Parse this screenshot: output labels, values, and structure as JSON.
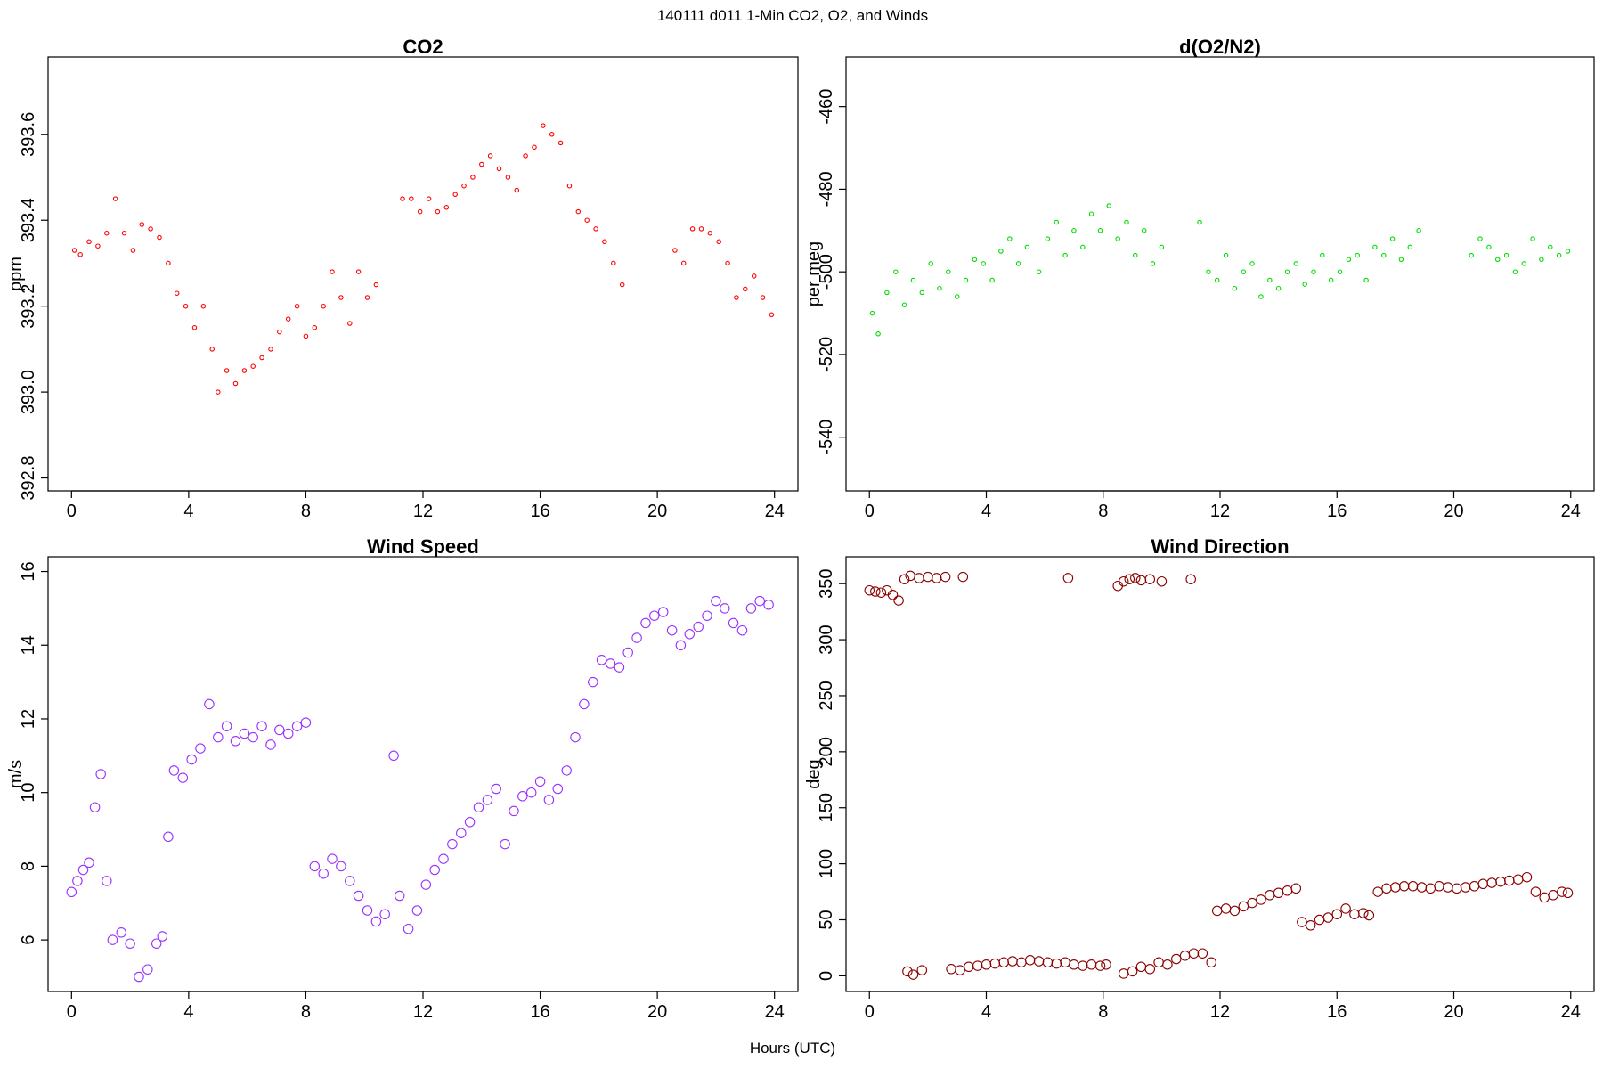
{
  "figure": {
    "title": "140111   d011   1-Min CO2, O2, and Winds",
    "xlabel": "Hours (UTC)"
  },
  "chart_data": [
    {
      "type": "scatter",
      "title": "CO2",
      "xlabel": "",
      "ylabel": "ppm",
      "xlim": [
        -0.8,
        24.8
      ],
      "ylim": [
        392.77,
        393.78
      ],
      "xticks": [
        0,
        4,
        8,
        12,
        16,
        20,
        24
      ],
      "yticks": [
        392.8,
        393.0,
        393.2,
        393.4,
        393.6
      ],
      "ytick_labels": [
        "392.8",
        "393.0",
        "393.2",
        "393.4",
        "393.6"
      ],
      "grid": false,
      "legend": "none",
      "color": "#ff0000",
      "marker_size": "small",
      "series": [
        {
          "x": [
            0.1,
            0.3,
            0.6,
            0.9,
            1.2,
            1.5,
            1.8,
            2.1,
            2.4,
            2.7,
            3.0,
            3.3,
            3.6,
            3.9,
            4.2,
            4.5,
            4.8,
            5.0,
            5.3,
            5.6,
            5.9,
            6.2,
            6.5,
            6.8,
            7.1,
            7.4,
            7.7,
            8.0,
            8.3,
            8.6,
            8.9,
            9.2,
            9.5,
            9.8,
            10.1,
            10.4,
            11.3,
            11.6,
            11.9,
            12.2,
            12.5,
            12.8,
            13.1,
            13.4,
            13.7,
            14.0,
            14.3,
            14.6,
            14.9,
            15.2,
            15.5,
            15.8,
            16.1,
            16.4,
            16.7,
            17.0,
            17.3,
            17.6,
            17.9,
            18.2,
            18.5,
            18.8,
            20.6,
            20.9,
            21.2,
            21.5,
            21.8,
            22.1,
            22.4,
            22.7,
            23.0,
            23.3,
            23.6,
            23.9
          ],
          "y": [
            393.33,
            393.32,
            393.35,
            393.34,
            393.37,
            393.45,
            393.37,
            393.33,
            393.39,
            393.38,
            393.36,
            393.3,
            393.23,
            393.2,
            393.15,
            393.2,
            393.1,
            393.0,
            393.05,
            393.02,
            393.05,
            393.06,
            393.08,
            393.1,
            393.14,
            393.17,
            393.2,
            393.13,
            393.15,
            393.2,
            393.28,
            393.22,
            393.16,
            393.28,
            393.22,
            393.25,
            393.45,
            393.45,
            393.42,
            393.45,
            393.42,
            393.43,
            393.46,
            393.48,
            393.5,
            393.53,
            393.55,
            393.52,
            393.5,
            393.47,
            393.55,
            393.57,
            393.62,
            393.6,
            393.58,
            393.48,
            393.42,
            393.4,
            393.38,
            393.35,
            393.3,
            393.25,
            393.33,
            393.3,
            393.38,
            393.38,
            393.37,
            393.35,
            393.3,
            393.22,
            393.24,
            393.27,
            393.22,
            393.18
          ]
        }
      ]
    },
    {
      "type": "scatter",
      "title": "d(O2/N2)",
      "xlabel": "",
      "ylabel": "per meg",
      "xlim": [
        -0.8,
        24.8
      ],
      "ylim": [
        -553,
        -448
      ],
      "xticks": [
        0,
        4,
        8,
        12,
        16,
        20,
        24
      ],
      "yticks": [
        -540,
        -520,
        -500,
        -480,
        -460
      ],
      "ytick_labels": [
        "-540",
        "-520",
        "-500",
        "-480",
        "-460"
      ],
      "grid": false,
      "legend": "none",
      "color": "#00dd00",
      "marker_size": "small",
      "series": [
        {
          "x": [
            0.1,
            0.3,
            0.6,
            0.9,
            1.2,
            1.5,
            1.8,
            2.1,
            2.4,
            2.7,
            3.0,
            3.3,
            3.6,
            3.9,
            4.2,
            4.5,
            4.8,
            5.1,
            5.4,
            5.8,
            6.1,
            6.4,
            6.7,
            7.0,
            7.3,
            7.6,
            7.9,
            8.2,
            8.5,
            8.8,
            9.1,
            9.4,
            9.7,
            10.0,
            11.3,
            11.6,
            11.9,
            12.2,
            12.5,
            12.8,
            13.1,
            13.4,
            13.7,
            14.0,
            14.3,
            14.6,
            14.9,
            15.2,
            15.5,
            15.8,
            16.1,
            16.4,
            16.7,
            17.0,
            17.3,
            17.6,
            17.9,
            18.2,
            18.5,
            18.8,
            20.6,
            20.9,
            21.2,
            21.5,
            21.8,
            22.1,
            22.4,
            22.7,
            23.0,
            23.3,
            23.6,
            23.9
          ],
          "y": [
            -510,
            -515,
            -505,
            -500,
            -508,
            -502,
            -505,
            -498,
            -504,
            -500,
            -506,
            -502,
            -497,
            -498,
            -502,
            -495,
            -492,
            -498,
            -494,
            -500,
            -492,
            -488,
            -496,
            -490,
            -494,
            -486,
            -490,
            -484,
            -492,
            -488,
            -496,
            -490,
            -498,
            -494,
            -488,
            -500,
            -502,
            -496,
            -504,
            -500,
            -498,
            -506,
            -502,
            -504,
            -500,
            -498,
            -503,
            -500,
            -496,
            -502,
            -500,
            -497,
            -496,
            -502,
            -494,
            -496,
            -492,
            -497,
            -494,
            -490,
            -496,
            -492,
            -494,
            -497,
            -496,
            -500,
            -498,
            -492,
            -497,
            -494,
            -496,
            -495
          ]
        }
      ]
    },
    {
      "type": "scatter",
      "title": "Wind Speed",
      "xlabel": "",
      "ylabel": "m/s",
      "xlim": [
        -0.8,
        24.8
      ],
      "ylim": [
        4.6,
        16.4
      ],
      "xticks": [
        0,
        4,
        8,
        12,
        16,
        20,
        24
      ],
      "yticks": [
        6,
        8,
        10,
        12,
        14,
        16
      ],
      "ytick_labels": [
        "6",
        "8",
        "10",
        "12",
        "14",
        "16"
      ],
      "grid": false,
      "legend": "none",
      "color": "#9b30ff",
      "marker_size": "large",
      "series": [
        {
          "x": [
            0.0,
            0.2,
            0.4,
            0.6,
            0.8,
            1.0,
            1.2,
            1.4,
            1.7,
            2.0,
            2.3,
            2.6,
            2.9,
            3.1,
            3.3,
            3.5,
            3.8,
            4.1,
            4.4,
            4.7,
            5.0,
            5.3,
            5.6,
            5.9,
            6.2,
            6.5,
            6.8,
            7.1,
            7.4,
            7.7,
            8.0,
            8.3,
            8.6,
            8.9,
            9.2,
            9.5,
            9.8,
            10.1,
            10.4,
            10.7,
            11.0,
            11.2,
            11.5,
            11.8,
            12.1,
            12.4,
            12.7,
            13.0,
            13.3,
            13.6,
            13.9,
            14.2,
            14.5,
            14.8,
            15.1,
            15.4,
            15.7,
            16.0,
            16.3,
            16.6,
            16.9,
            17.2,
            17.5,
            17.8,
            18.1,
            18.4,
            18.7,
            19.0,
            19.3,
            19.6,
            19.9,
            20.2,
            20.5,
            20.8,
            21.1,
            21.4,
            21.7,
            22.0,
            22.3,
            22.6,
            22.9,
            23.2,
            23.5,
            23.8
          ],
          "y": [
            7.3,
            7.6,
            7.9,
            8.1,
            9.6,
            10.5,
            7.6,
            6.0,
            6.2,
            5.9,
            5.0,
            5.2,
            5.9,
            6.1,
            8.8,
            10.6,
            10.4,
            10.9,
            11.2,
            12.4,
            11.5,
            11.8,
            11.4,
            11.6,
            11.5,
            11.8,
            11.3,
            11.7,
            11.6,
            11.8,
            11.9,
            8.0,
            7.8,
            8.2,
            8.0,
            7.6,
            7.2,
            6.8,
            6.5,
            6.7,
            11.0,
            7.2,
            6.3,
            6.8,
            7.5,
            7.9,
            8.2,
            8.6,
            8.9,
            9.2,
            9.6,
            9.8,
            10.1,
            8.6,
            9.5,
            9.9,
            10.0,
            10.3,
            9.8,
            10.1,
            10.6,
            11.5,
            12.4,
            13.0,
            13.6,
            13.5,
            13.4,
            13.8,
            14.2,
            14.6,
            14.8,
            14.9,
            14.4,
            14.0,
            14.3,
            14.5,
            14.8,
            15.2,
            15.0,
            14.6,
            14.4,
            15.0,
            15.2,
            15.1
          ]
        }
      ]
    },
    {
      "type": "scatter",
      "title": "Wind Direction",
      "xlabel": "",
      "ylabel": "deg",
      "xlim": [
        -0.8,
        24.8
      ],
      "ylim": [
        -14,
        374
      ],
      "xticks": [
        0,
        4,
        8,
        12,
        16,
        20,
        24
      ],
      "yticks": [
        0,
        50,
        100,
        150,
        200,
        250,
        300,
        350
      ],
      "ytick_labels": [
        "0",
        "50",
        "100",
        "150",
        "200",
        "250",
        "300",
        "350"
      ],
      "grid": false,
      "legend": "none",
      "color": "#8b0000",
      "marker_size": "large",
      "series": [
        {
          "x": [
            0.0,
            0.2,
            0.4,
            0.6,
            0.8,
            1.0,
            1.2,
            1.4,
            1.7,
            2.0,
            2.3,
            2.6,
            3.2,
            1.3,
            1.5,
            1.8,
            2.8,
            3.1,
            3.4,
            3.7,
            4.0,
            4.3,
            4.6,
            4.9,
            5.2,
            5.5,
            5.8,
            6.1,
            6.4,
            6.7,
            7.0,
            7.3,
            7.6,
            7.9,
            8.1,
            6.8,
            8.5,
            8.7,
            8.9,
            9.1,
            9.3,
            9.6,
            10.0,
            11.0,
            8.7,
            9.0,
            9.3,
            9.6,
            9.9,
            10.2,
            10.5,
            10.8,
            11.1,
            11.4,
            11.7,
            11.9,
            12.2,
            12.5,
            12.8,
            13.1,
            13.4,
            13.7,
            14.0,
            14.3,
            14.6,
            14.8,
            15.1,
            15.4,
            15.7,
            16.0,
            16.3,
            16.6,
            16.9,
            17.1,
            17.4,
            17.7,
            18.0,
            18.3,
            18.6,
            18.9,
            19.2,
            19.5,
            19.8,
            20.1,
            20.4,
            20.7,
            21.0,
            21.3,
            21.6,
            21.9,
            22.2,
            22.5,
            22.8,
            23.1,
            23.4,
            23.7,
            23.9
          ],
          "y": [
            344,
            343,
            342,
            344,
            340,
            335,
            354,
            357,
            355,
            356,
            355,
            356,
            356,
            4,
            1,
            5,
            6,
            5,
            8,
            9,
            10,
            11,
            12,
            13,
            12,
            14,
            13,
            12,
            11,
            12,
            10,
            9,
            10,
            9,
            10,
            355,
            348,
            352,
            354,
            355,
            353,
            354,
            352,
            354,
            2,
            4,
            8,
            6,
            12,
            10,
            15,
            18,
            20,
            20,
            12,
            58,
            60,
            58,
            62,
            65,
            68,
            72,
            74,
            76,
            78,
            48,
            45,
            50,
            52,
            55,
            60,
            55,
            56,
            54,
            75,
            78,
            79,
            80,
            80,
            79,
            78,
            80,
            79,
            78,
            79,
            80,
            82,
            83,
            84,
            85,
            86,
            88,
            75,
            70,
            72,
            75,
            74
          ]
        }
      ]
    }
  ]
}
